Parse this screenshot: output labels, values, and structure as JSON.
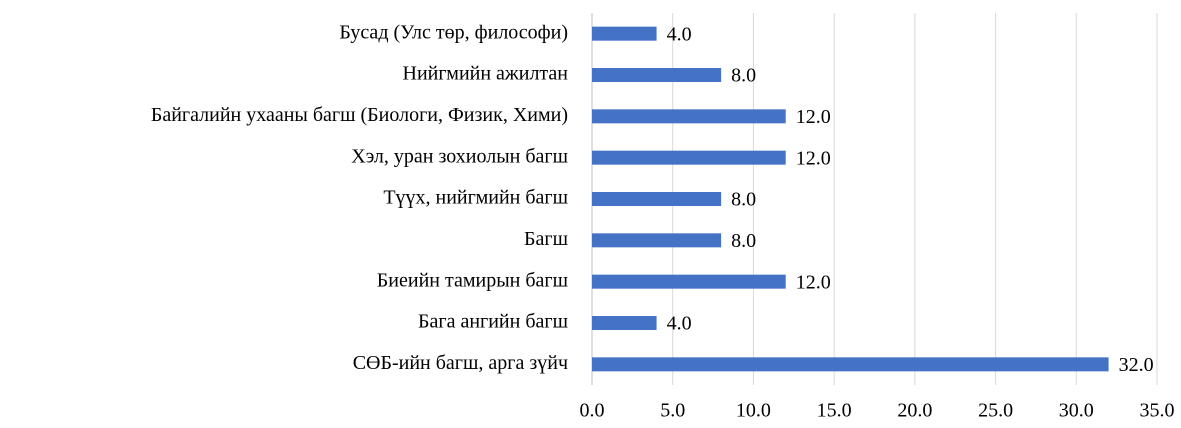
{
  "chart_data": {
    "type": "barh",
    "categories": [
      "Бусад (Улс төр, философи)",
      "Нийгмийн ажилтан",
      "Байгалийн ухааны багш (Биологи, Физик, Хими)",
      "Хэл, уран зохиолын багш",
      "Түүх, нийгмийн багш",
      "Багш",
      "Биеийн тамирын багш",
      "Бага ангийн багш",
      "СӨБ-ийн багш, арга зүйч"
    ],
    "values": [
      4,
      8,
      12,
      12,
      8,
      8,
      12,
      4,
      32
    ],
    "value_labels": [
      "4.0",
      "8.0",
      "12.0",
      "12.0",
      "8.0",
      "8.0",
      "12.0",
      "4.0",
      "32.0"
    ],
    "color": "#4472c4",
    "xlim": [
      0,
      35
    ],
    "xticks": [
      {
        "value": 0,
        "label": "0.0"
      },
      {
        "value": 5,
        "label": "5.0"
      },
      {
        "value": 10,
        "label": "10.0"
      },
      {
        "value": 15,
        "label": "15.0"
      },
      {
        "value": 20,
        "label": "20.0"
      },
      {
        "value": 25,
        "label": "25.0"
      },
      {
        "value": 30,
        "label": "30.0"
      },
      {
        "value": 35,
        "label": "35.0"
      }
    ],
    "grid": true
  }
}
